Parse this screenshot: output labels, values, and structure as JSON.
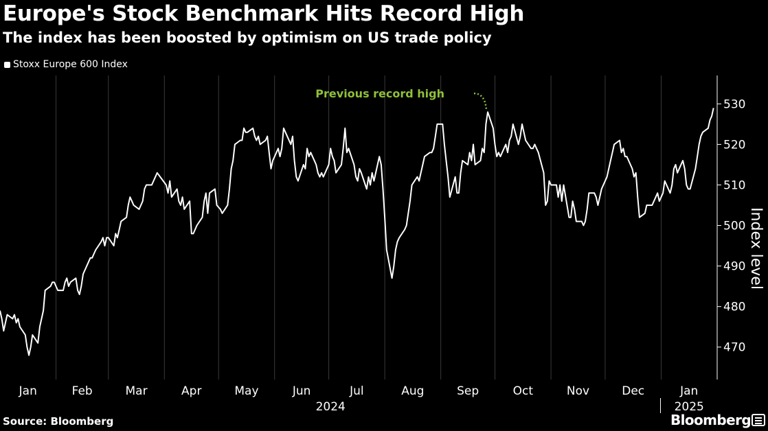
{
  "header": {
    "title": "Europe's Stock Benchmark Hits Record High",
    "subtitle": "The index has been boosted by optimism on US trade policy"
  },
  "footer": {
    "source": "Source: Bloomberg",
    "brand": "Bloomberg"
  },
  "colors": {
    "background": "#000000",
    "line": "#ffffff",
    "annotation": "#8fc03a",
    "grid": "#3a3a3a"
  },
  "chart_data": {
    "type": "line",
    "title": "Europe's Stock Benchmark Hits Record High",
    "subtitle": "The index has been boosted by optimism on US trade policy",
    "ylabel": "Index level",
    "ylim": [
      462,
      537
    ],
    "yticks": [
      470,
      480,
      490,
      500,
      510,
      520,
      530
    ],
    "y_axis_side": "right",
    "grid": "vertical month separators",
    "legend": {
      "placement": "top-left",
      "entries": [
        "Stoxx Europe 600 Index"
      ]
    },
    "x_tick_labels": [
      "Jan",
      "Feb",
      "Mar",
      "Apr",
      "May",
      "Jun",
      "Jul",
      "Aug",
      "Sep",
      "Oct",
      "Nov",
      "Dec",
      "Jan"
    ],
    "x_year_labels": [
      "2024",
      "2025"
    ],
    "annotation": {
      "text": "Previous record high",
      "x": "2024-09-27",
      "y": 528
    },
    "series": [
      {
        "name": "Stoxx Europe 600 Index",
        "points": [
          [
            "2024-01-01",
            479
          ],
          [
            "2024-01-02",
            477
          ],
          [
            "2024-01-03",
            474
          ],
          [
            "2024-01-04",
            476
          ],
          [
            "2024-01-05",
            478
          ],
          [
            "2024-01-08",
            477
          ],
          [
            "2024-01-09",
            478
          ],
          [
            "2024-01-10",
            476
          ],
          [
            "2024-01-11",
            477
          ],
          [
            "2024-01-12",
            475
          ],
          [
            "2024-01-15",
            473
          ],
          [
            "2024-01-16",
            470
          ],
          [
            "2024-01-17",
            468
          ],
          [
            "2024-01-18",
            470
          ],
          [
            "2024-01-19",
            473
          ],
          [
            "2024-01-22",
            471
          ],
          [
            "2024-01-23",
            475
          ],
          [
            "2024-01-24",
            477
          ],
          [
            "2024-01-25",
            479
          ],
          [
            "2024-01-26",
            484
          ],
          [
            "2024-01-29",
            485
          ],
          [
            "2024-01-30",
            486
          ],
          [
            "2024-01-31",
            486
          ],
          [
            "2024-02-01",
            485
          ],
          [
            "2024-02-02",
            484
          ],
          [
            "2024-02-05",
            484
          ],
          [
            "2024-02-06",
            486
          ],
          [
            "2024-02-07",
            487
          ],
          [
            "2024-02-08",
            485
          ],
          [
            "2024-02-09",
            486
          ],
          [
            "2024-02-12",
            487
          ],
          [
            "2024-02-13",
            484
          ],
          [
            "2024-02-14",
            483
          ],
          [
            "2024-02-15",
            485
          ],
          [
            "2024-02-16",
            488
          ],
          [
            "2024-02-19",
            491
          ],
          [
            "2024-02-20",
            492
          ],
          [
            "2024-02-21",
            492
          ],
          [
            "2024-02-22",
            493
          ],
          [
            "2024-02-23",
            494
          ],
          [
            "2024-02-26",
            496
          ],
          [
            "2024-02-27",
            497
          ],
          [
            "2024-02-28",
            495
          ],
          [
            "2024-02-29",
            497
          ],
          [
            "2024-03-01",
            497
          ],
          [
            "2024-03-04",
            495
          ],
          [
            "2024-03-05",
            498
          ],
          [
            "2024-03-06",
            497
          ],
          [
            "2024-03-07",
            499
          ],
          [
            "2024-03-08",
            501
          ],
          [
            "2024-03-11",
            502
          ],
          [
            "2024-03-12",
            505
          ],
          [
            "2024-03-13",
            507
          ],
          [
            "2024-03-14",
            506
          ],
          [
            "2024-03-15",
            505
          ],
          [
            "2024-03-18",
            504
          ],
          [
            "2024-03-19",
            505
          ],
          [
            "2024-03-20",
            506
          ],
          [
            "2024-03-21",
            509
          ],
          [
            "2024-03-22",
            510
          ],
          [
            "2024-03-25",
            510
          ],
          [
            "2024-03-26",
            511
          ],
          [
            "2024-03-27",
            512
          ],
          [
            "2024-03-28",
            513
          ],
          [
            "2024-04-02",
            510
          ],
          [
            "2024-04-03",
            508
          ],
          [
            "2024-04-04",
            511
          ],
          [
            "2024-04-05",
            507
          ],
          [
            "2024-04-08",
            509
          ],
          [
            "2024-04-09",
            506
          ],
          [
            "2024-04-10",
            505
          ],
          [
            "2024-04-11",
            507
          ],
          [
            "2024-04-12",
            504
          ],
          [
            "2024-04-15",
            506
          ],
          [
            "2024-04-16",
            498
          ],
          [
            "2024-04-17",
            498
          ],
          [
            "2024-04-18",
            499
          ],
          [
            "2024-04-19",
            500
          ],
          [
            "2024-04-22",
            502
          ],
          [
            "2024-04-23",
            506
          ],
          [
            "2024-04-24",
            508
          ],
          [
            "2024-04-25",
            503
          ],
          [
            "2024-04-26",
            508
          ],
          [
            "2024-04-29",
            509
          ],
          [
            "2024-04-30",
            505
          ],
          [
            "2024-05-02",
            504
          ],
          [
            "2024-05-03",
            503
          ],
          [
            "2024-05-06",
            505
          ],
          [
            "2024-05-07",
            509
          ],
          [
            "2024-05-08",
            514
          ],
          [
            "2024-05-09",
            516
          ],
          [
            "2024-05-10",
            520
          ],
          [
            "2024-05-13",
            521
          ],
          [
            "2024-05-14",
            521
          ],
          [
            "2024-05-15",
            524
          ],
          [
            "2024-05-16",
            523
          ],
          [
            "2024-05-17",
            523
          ],
          [
            "2024-05-20",
            524
          ],
          [
            "2024-05-21",
            522
          ],
          [
            "2024-05-22",
            521
          ],
          [
            "2024-05-23",
            522
          ],
          [
            "2024-05-24",
            520
          ],
          [
            "2024-05-27",
            521
          ],
          [
            "2024-05-28",
            522
          ],
          [
            "2024-05-29",
            518
          ],
          [
            "2024-05-30",
            514
          ],
          [
            "2024-05-31",
            516
          ],
          [
            "2024-06-03",
            519
          ],
          [
            "2024-06-04",
            517
          ],
          [
            "2024-06-05",
            519
          ],
          [
            "2024-06-06",
            524
          ],
          [
            "2024-06-07",
            523
          ],
          [
            "2024-06-10",
            520
          ],
          [
            "2024-06-11",
            522
          ],
          [
            "2024-06-12",
            516
          ],
          [
            "2024-06-13",
            512
          ],
          [
            "2024-06-14",
            511
          ],
          [
            "2024-06-17",
            515
          ],
          [
            "2024-06-18",
            514
          ],
          [
            "2024-06-19",
            519
          ],
          [
            "2024-06-20",
            517
          ],
          [
            "2024-06-21",
            518
          ],
          [
            "2024-06-24",
            515
          ],
          [
            "2024-06-25",
            513
          ],
          [
            "2024-06-26",
            512
          ],
          [
            "2024-06-27",
            513
          ],
          [
            "2024-06-28",
            512
          ],
          [
            "2024-07-01",
            515
          ],
          [
            "2024-07-02",
            519
          ],
          [
            "2024-07-03",
            517
          ],
          [
            "2024-07-04",
            516
          ],
          [
            "2024-07-05",
            513
          ],
          [
            "2024-07-08",
            515
          ],
          [
            "2024-07-09",
            519
          ],
          [
            "2024-07-10",
            524
          ],
          [
            "2024-07-11",
            518
          ],
          [
            "2024-07-12",
            519
          ],
          [
            "2024-07-15",
            515
          ],
          [
            "2024-07-16",
            512
          ],
          [
            "2024-07-17",
            511
          ],
          [
            "2024-07-18",
            514
          ],
          [
            "2024-07-19",
            513
          ],
          [
            "2024-07-22",
            509
          ],
          [
            "2024-07-23",
            512
          ],
          [
            "2024-07-24",
            510
          ],
          [
            "2024-07-25",
            513
          ],
          [
            "2024-07-26",
            511
          ],
          [
            "2024-07-29",
            517
          ],
          [
            "2024-07-30",
            515
          ],
          [
            "2024-07-31",
            509
          ],
          [
            "2024-08-01",
            502
          ],
          [
            "2024-08-02",
            494
          ],
          [
            "2024-08-05",
            487
          ],
          [
            "2024-08-06",
            490
          ],
          [
            "2024-08-07",
            494
          ],
          [
            "2024-08-08",
            496
          ],
          [
            "2024-08-09",
            497
          ],
          [
            "2024-08-12",
            499
          ],
          [
            "2024-08-13",
            500
          ],
          [
            "2024-08-14",
            503
          ],
          [
            "2024-08-15",
            506
          ],
          [
            "2024-08-16",
            510
          ],
          [
            "2024-08-19",
            512
          ],
          [
            "2024-08-20",
            511
          ],
          [
            "2024-08-21",
            513
          ],
          [
            "2024-08-22",
            515
          ],
          [
            "2024-08-23",
            517
          ],
          [
            "2024-08-26",
            518
          ],
          [
            "2024-08-27",
            518
          ],
          [
            "2024-08-28",
            519
          ],
          [
            "2024-08-29",
            522
          ],
          [
            "2024-08-30",
            525
          ],
          [
            "2024-09-02",
            525
          ],
          [
            "2024-09-03",
            520
          ],
          [
            "2024-09-04",
            516
          ],
          [
            "2024-09-05",
            512
          ],
          [
            "2024-09-06",
            507
          ],
          [
            "2024-09-09",
            512
          ],
          [
            "2024-09-10",
            508
          ],
          [
            "2024-09-11",
            508
          ],
          [
            "2024-09-12",
            513
          ],
          [
            "2024-09-13",
            516
          ],
          [
            "2024-09-16",
            515
          ],
          [
            "2024-09-17",
            518
          ],
          [
            "2024-09-18",
            516
          ],
          [
            "2024-09-19",
            520
          ],
          [
            "2024-09-20",
            515
          ],
          [
            "2024-09-23",
            516
          ],
          [
            "2024-09-24",
            519
          ],
          [
            "2024-09-25",
            518
          ],
          [
            "2024-09-26",
            525
          ],
          [
            "2024-09-27",
            528
          ],
          [
            "2024-09-30",
            524
          ],
          [
            "2024-10-01",
            520
          ],
          [
            "2024-10-02",
            517
          ],
          [
            "2024-10-03",
            518
          ],
          [
            "2024-10-04",
            517
          ],
          [
            "2024-10-07",
            520
          ],
          [
            "2024-10-08",
            518
          ],
          [
            "2024-10-09",
            521
          ],
          [
            "2024-10-10",
            522
          ],
          [
            "2024-10-11",
            525
          ],
          [
            "2024-10-14",
            520
          ],
          [
            "2024-10-15",
            522
          ],
          [
            "2024-10-16",
            525
          ],
          [
            "2024-10-17",
            523
          ],
          [
            "2024-10-18",
            521
          ],
          [
            "2024-10-21",
            519
          ],
          [
            "2024-10-22",
            519
          ],
          [
            "2024-10-23",
            520
          ],
          [
            "2024-10-24",
            519
          ],
          [
            "2024-10-25",
            518
          ],
          [
            "2024-10-28",
            513
          ],
          [
            "2024-10-29",
            505
          ],
          [
            "2024-10-30",
            506
          ],
          [
            "2024-10-31",
            511
          ],
          [
            "2024-11-01",
            510
          ],
          [
            "2024-11-04",
            510
          ],
          [
            "2024-11-05",
            507
          ],
          [
            "2024-11-06",
            510
          ],
          [
            "2024-11-07",
            506
          ],
          [
            "2024-11-08",
            510
          ],
          [
            "2024-11-11",
            502
          ],
          [
            "2024-11-12",
            502
          ],
          [
            "2024-11-13",
            506
          ],
          [
            "2024-11-14",
            504
          ],
          [
            "2024-11-15",
            501
          ],
          [
            "2024-11-18",
            501
          ],
          [
            "2024-11-19",
            500
          ],
          [
            "2024-11-20",
            501
          ],
          [
            "2024-11-21",
            504
          ],
          [
            "2024-11-22",
            508
          ],
          [
            "2024-11-25",
            508
          ],
          [
            "2024-11-26",
            507
          ],
          [
            "2024-11-27",
            505
          ],
          [
            "2024-11-28",
            507
          ],
          [
            "2024-11-29",
            509
          ],
          [
            "2024-12-02",
            512
          ],
          [
            "2024-12-03",
            514
          ],
          [
            "2024-12-04",
            516
          ],
          [
            "2024-12-05",
            518
          ],
          [
            "2024-12-06",
            520
          ],
          [
            "2024-12-09",
            521
          ],
          [
            "2024-12-10",
            518
          ],
          [
            "2024-12-11",
            519
          ],
          [
            "2024-12-12",
            517
          ],
          [
            "2024-12-13",
            517
          ],
          [
            "2024-12-16",
            514
          ],
          [
            "2024-12-17",
            512
          ],
          [
            "2024-12-18",
            513
          ],
          [
            "2024-12-19",
            507
          ],
          [
            "2024-12-20",
            502
          ],
          [
            "2024-12-23",
            503
          ],
          [
            "2024-12-24",
            505
          ],
          [
            "2024-12-27",
            505
          ],
          [
            "2024-12-30",
            508
          ],
          [
            "2024-12-31",
            506
          ],
          [
            "2025-01-02",
            508
          ],
          [
            "2025-01-03",
            511
          ],
          [
            "2025-01-06",
            508
          ],
          [
            "2025-01-07",
            510
          ],
          [
            "2025-01-08",
            514
          ],
          [
            "2025-01-09",
            515
          ],
          [
            "2025-01-10",
            513
          ],
          [
            "2025-01-13",
            516
          ],
          [
            "2025-01-14",
            514
          ],
          [
            "2025-01-15",
            510
          ],
          [
            "2025-01-16",
            509
          ],
          [
            "2025-01-17",
            509
          ],
          [
            "2025-01-20",
            514
          ],
          [
            "2025-01-21",
            517
          ],
          [
            "2025-01-22",
            520
          ],
          [
            "2025-01-23",
            522
          ],
          [
            "2025-01-24",
            523
          ],
          [
            "2025-01-27",
            524
          ],
          [
            "2025-01-28",
            526
          ],
          [
            "2025-01-29",
            527
          ],
          [
            "2025-01-30",
            529
          ]
        ]
      }
    ]
  }
}
